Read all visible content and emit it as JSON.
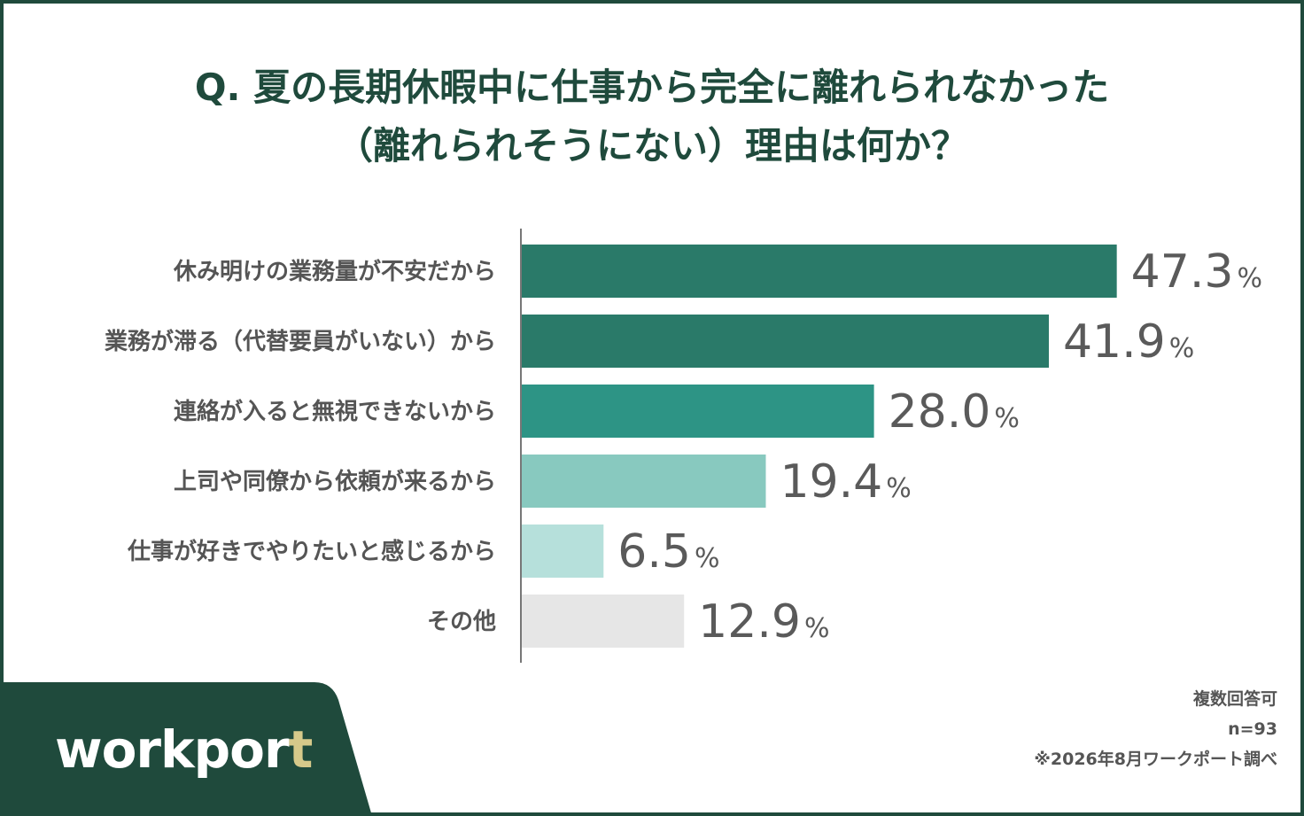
{
  "chart_data": {
    "type": "bar",
    "orientation": "horizontal",
    "title_lines": [
      "Q. 夏の長期休暇中に仕事から完全に離れられなかった",
      "（離れられそうにない）理由は何か？"
    ],
    "categories": [
      "休み明けの業務量が不安だから",
      "業務が滞る（代替要員がいない）から",
      "連絡が入ると無視できないから",
      "上司や同僚から依頼が来るから",
      "仕事が好きでやりたいと感じるから",
      "その他"
    ],
    "values": [
      47.3,
      41.9,
      28.0,
      19.4,
      6.5,
      12.9
    ],
    "value_labels": [
      "47.3",
      "41.9",
      "28.0",
      "19.4",
      "6.5",
      "12.9"
    ],
    "unit": "%",
    "colors": [
      "#2a7a69",
      "#2a7a69",
      "#2d9485",
      "#88c9bf",
      "#b6e0db",
      "#e6e6e6"
    ],
    "xlim": [
      0,
      50
    ],
    "grid": false,
    "legend": "none"
  },
  "brand": {
    "logo_main": "workpor",
    "logo_accent": "t"
  },
  "notes": {
    "multiple_answers": "複数回答可",
    "sample_size": "n=93",
    "source": "※2026年8月ワークポート調べ"
  },
  "colors": {
    "frame": "#1f4a3c",
    "title": "#1f4a3c",
    "logo_accent": "#d6c98a"
  }
}
